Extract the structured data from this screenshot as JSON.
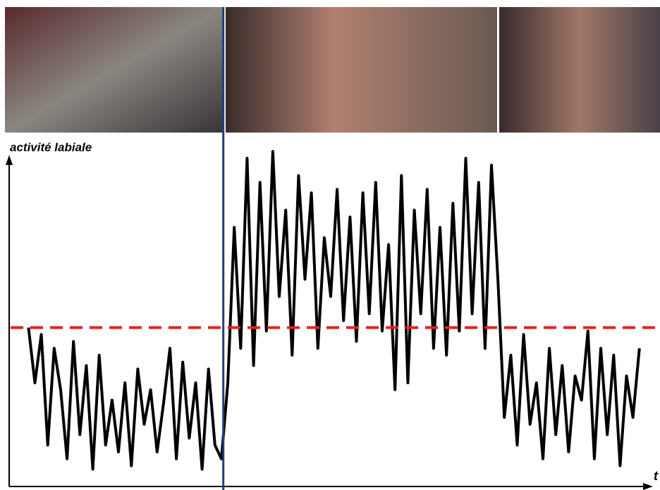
{
  "chart_data": {
    "type": "line",
    "y_label": "activité labiale",
    "x_label": "t",
    "xlim": [
      0,
      100
    ],
    "ylim": [
      0,
      100
    ],
    "x": [
      3,
      4,
      5,
      6,
      7,
      8,
      9,
      10,
      11,
      12,
      13,
      14,
      15,
      16,
      17,
      18,
      19,
      20,
      21,
      22,
      23,
      24,
      25,
      26,
      27,
      28,
      29,
      30,
      31,
      32,
      33,
      34,
      35,
      36,
      37,
      38,
      39,
      40,
      41,
      42,
      43,
      44,
      45,
      46,
      47,
      48,
      49,
      50,
      51,
      52,
      53,
      54,
      55,
      56,
      57,
      58,
      59,
      60,
      61,
      62,
      63,
      64,
      65,
      66,
      67,
      68,
      69,
      70,
      71,
      72,
      73,
      74,
      75,
      76,
      77,
      78,
      79,
      80,
      81,
      82,
      83,
      84,
      85,
      86,
      87,
      88,
      89,
      90,
      91,
      92,
      93,
      94,
      95,
      96,
      97,
      98
    ],
    "values": [
      46,
      30,
      44,
      12,
      40,
      28,
      8,
      42,
      15,
      35,
      5,
      38,
      12,
      25,
      10,
      30,
      6,
      34,
      18,
      28,
      10,
      24,
      40,
      8,
      36,
      14,
      30,
      5,
      34,
      12,
      8,
      30,
      75,
      40,
      95,
      35,
      88,
      45,
      97,
      55,
      80,
      38,
      90,
      60,
      85,
      40,
      72,
      55,
      86,
      48,
      78,
      42,
      85,
      50,
      88,
      45,
      70,
      28,
      90,
      30,
      80,
      50,
      86,
      40,
      75,
      38,
      82,
      45,
      95,
      50,
      88,
      40,
      93,
      60,
      20,
      38,
      12,
      44,
      18,
      30,
      8,
      40,
      15,
      35,
      10,
      32,
      25,
      45,
      8,
      40,
      15,
      38,
      6,
      32,
      20,
      40
    ],
    "color": "#000000",
    "threshold": {
      "y": 46,
      "color": "#e8211b"
    },
    "boundary": {
      "x": 33.3,
      "color": "#1f3f7a"
    }
  }
}
